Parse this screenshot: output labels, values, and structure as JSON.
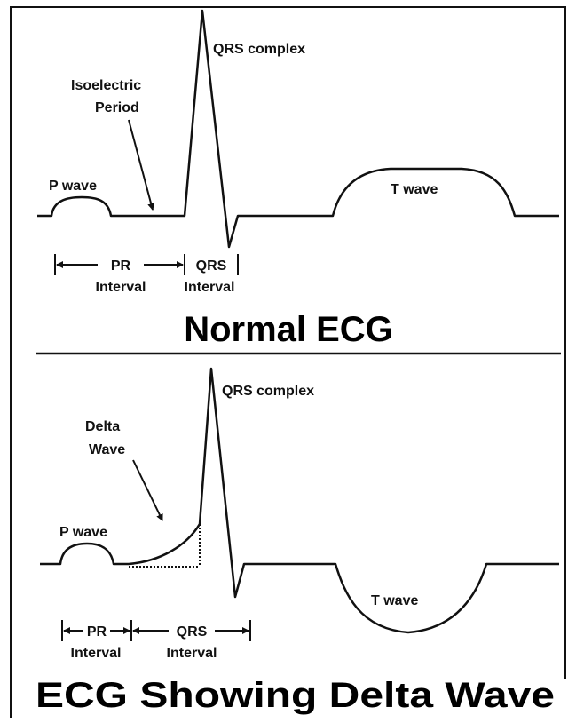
{
  "panels": [
    {
      "title": "Normal ECG",
      "qrs_label": "QRS complex",
      "note_lines": [
        "Isoelectric",
        "Period"
      ],
      "p_label": "P wave",
      "t_label": "T wave",
      "pr": [
        "PR",
        "Interval"
      ],
      "qrs": [
        "QRS",
        "Interval"
      ]
    },
    {
      "title": "ECG Showing Delta Wave",
      "qrs_label": "QRS complex",
      "note_lines": [
        "Delta",
        "Wave"
      ],
      "p_label": "P wave",
      "t_label": "T wave",
      "pr": [
        "PR",
        "Interval"
      ],
      "qrs": [
        "QRS",
        "Interval"
      ]
    }
  ]
}
